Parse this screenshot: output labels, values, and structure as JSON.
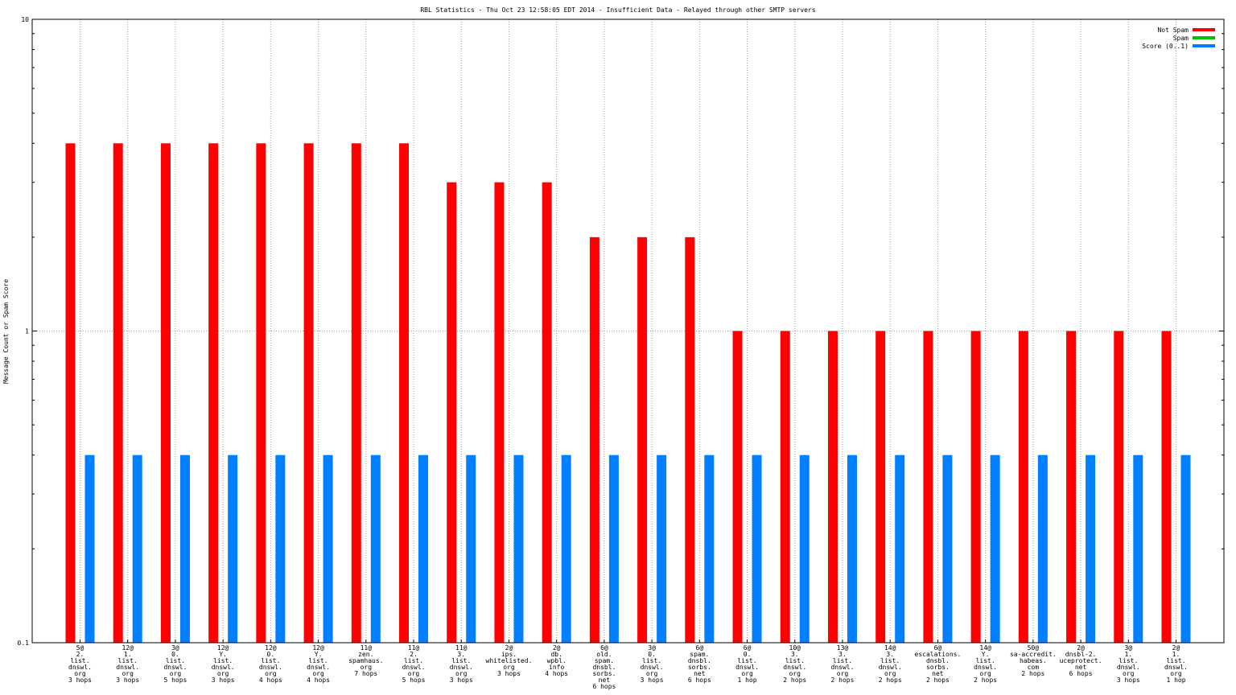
{
  "chart_data": {
    "type": "bar",
    "title": "RBL Statistics - Thu Oct 23 12:58:05 EDT 2014 - Insufficient Data - Relayed through other SMTP servers",
    "ylabel": "Message Count or Spam Score",
    "xlabel": "",
    "yscale": "log",
    "ylim": [
      0.1,
      10
    ],
    "yticks": [
      "0.1",
      "1",
      "10"
    ],
    "grid": true,
    "legend_position": "top-right",
    "categories": [
      [
        "5@",
        "2.",
        "list.",
        "dnswl.",
        "org",
        "3 hops"
      ],
      [
        "12@",
        "1.",
        "list.",
        "dnswl.",
        "org",
        "3 hops"
      ],
      [
        "3@",
        "0.",
        "list.",
        "dnswl.",
        "org",
        "5 hops"
      ],
      [
        "12@",
        "Y.",
        "list.",
        "dnswl.",
        "org",
        "3 hops"
      ],
      [
        "12@",
        "0.",
        "list.",
        "dnswl.",
        "org",
        "4 hops"
      ],
      [
        "12@",
        "Y.",
        "list.",
        "dnswl.",
        "org",
        "4 hops"
      ],
      [
        "11@",
        "zen.",
        "spamhaus.",
        "org",
        "7 hops"
      ],
      [
        "11@",
        "2.",
        "list.",
        "dnswl.",
        "org",
        "5 hops"
      ],
      [
        "11@",
        "3.",
        "list.",
        "dnswl.",
        "org",
        "3 hops"
      ],
      [
        "2@",
        "ips.",
        "whitelisted.",
        "org",
        "3 hops"
      ],
      [
        "2@",
        "db.",
        "wpbl.",
        "info",
        "4 hops"
      ],
      [
        "6@",
        "old.",
        "spam.",
        "dnsbl.",
        "sorbs.",
        "net",
        "6 hops"
      ],
      [
        "3@",
        "0.",
        "list.",
        "dnswl.",
        "org",
        "3 hops"
      ],
      [
        "6@",
        "spam.",
        "dnsbl.",
        "sorbs.",
        "net",
        "6 hops"
      ],
      [
        "6@",
        "0.",
        "list.",
        "dnswl.",
        "org",
        "1 hop"
      ],
      [
        "10@",
        "3.",
        "list.",
        "dnswl.",
        "org",
        "2 hops"
      ],
      [
        "13@",
        "3.",
        "list.",
        "dnswl.",
        "org",
        "2 hops"
      ],
      [
        "14@",
        "3.",
        "list.",
        "dnswl.",
        "org",
        "2 hops"
      ],
      [
        "6@",
        "escalations.",
        "dnsbl.",
        "sorbs.",
        "net",
        "2 hops"
      ],
      [
        "14@",
        "Y.",
        "list.",
        "dnswl.",
        "org",
        "2 hops"
      ],
      [
        "50@",
        "sa-accredit.",
        "habeas.",
        "com",
        "2 hops"
      ],
      [
        "2@",
        "dnsbl-2.",
        "uceprotect.",
        "net",
        "6 hops"
      ],
      [
        "3@",
        "1.",
        "list.",
        "dnswl.",
        "org",
        "3 hops"
      ],
      [
        "2@",
        "1.",
        "list.",
        "dnswl.",
        "org",
        "1 hop"
      ]
    ],
    "series": [
      {
        "name": "Not Spam",
        "color": "#ff0000",
        "values": [
          4,
          4,
          4,
          4,
          4,
          4,
          4,
          4,
          3,
          3,
          3,
          2,
          2,
          2,
          1,
          1,
          1,
          1,
          1,
          1,
          1,
          1,
          1,
          1
        ]
      },
      {
        "name": "Spam",
        "color": "#00c000",
        "values": [
          0,
          0,
          0,
          0,
          0,
          0,
          0,
          0,
          0,
          0,
          0,
          0,
          0,
          0,
          0,
          0,
          0,
          0,
          0,
          0,
          0,
          0,
          0,
          0
        ]
      },
      {
        "name": "Score (0..1)",
        "color": "#0080ff",
        "values": [
          0.4,
          0.4,
          0.4,
          0.4,
          0.4,
          0.4,
          0.4,
          0.4,
          0.4,
          0.4,
          0.4,
          0.4,
          0.4,
          0.4,
          0.4,
          0.4,
          0.4,
          0.4,
          0.4,
          0.4,
          0.4,
          0.4,
          0.4,
          0.4
        ]
      }
    ]
  }
}
